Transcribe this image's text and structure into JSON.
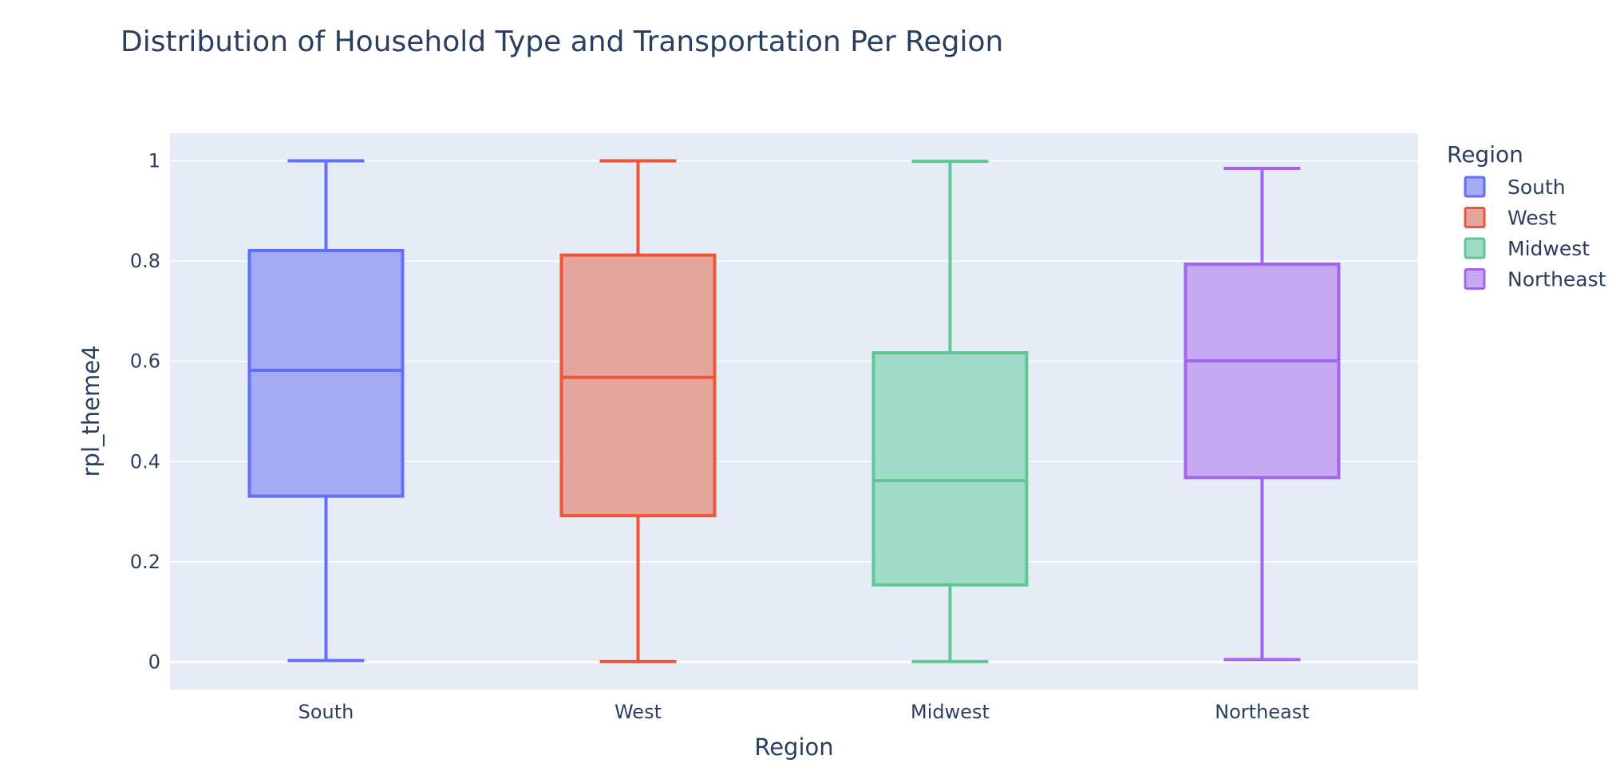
{
  "chart_data": {
    "type": "box",
    "title": "Distribution of Household Type and Transportation Per Region",
    "xlabel": "Region",
    "ylabel": "rpl_theme4",
    "ylim": [
      -0.055,
      1.055
    ],
    "yticks": [
      0,
      0.2,
      0.4,
      0.6,
      0.8,
      1
    ],
    "ytick_labels": [
      "0",
      "0.2",
      "0.4",
      "0.6",
      "0.8",
      "1"
    ],
    "grid": true,
    "legend": {
      "title": "Region",
      "placement": "top-right outside plot"
    },
    "categories": [
      "South",
      "West",
      "Midwest",
      "Northeast"
    ],
    "series": [
      {
        "name": "South",
        "color": "#636efa",
        "fill": "#a3abf4",
        "min": 0.003,
        "q1": 0.331,
        "median": 0.582,
        "q3": 0.821,
        "max": 1.0
      },
      {
        "name": "West",
        "color": "#ef553b",
        "fill": "#e4a59b",
        "min": 0.001,
        "q1": 0.292,
        "median": 0.568,
        "q3": 0.812,
        "max": 1.0
      },
      {
        "name": "Midwest",
        "color": "#00cc96",
        "fill": "#a0dbc8",
        "stroke": "#5ec794",
        "min": 0.001,
        "q1": 0.154,
        "median": 0.362,
        "q3": 0.617,
        "max": 0.999
      },
      {
        "name": "Northeast",
        "color": "#ab63fa",
        "fill": "#c5aaf1",
        "stroke": "#a464f0",
        "min": 0.005,
        "q1": 0.368,
        "median": 0.601,
        "q3": 0.794,
        "max": 0.985
      }
    ]
  }
}
